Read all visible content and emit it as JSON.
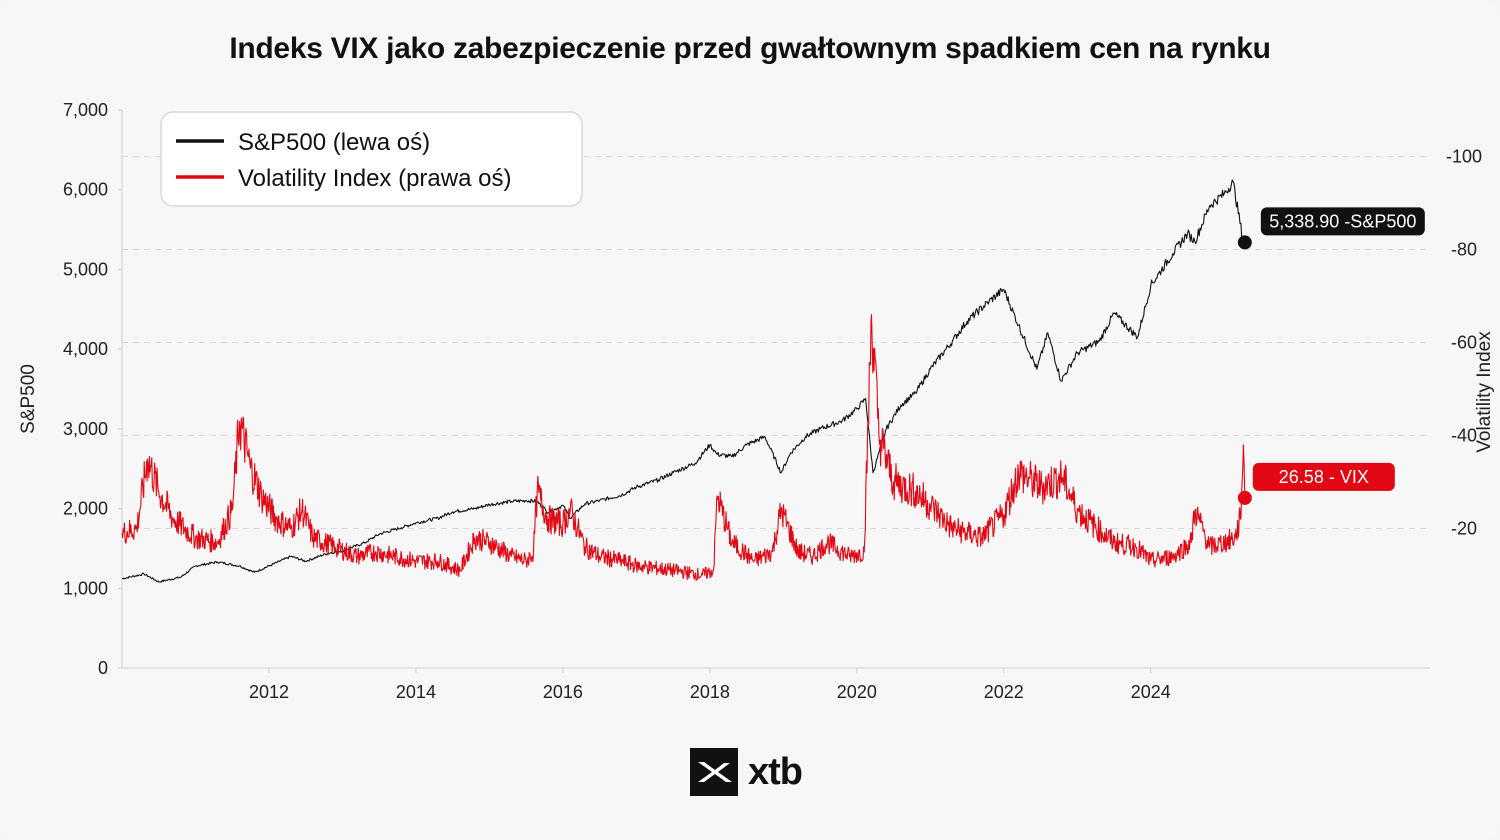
{
  "chart_data": {
    "type": "line",
    "title": "Indeks VIX jako zabezpieczenie przed gwałtownym spadkiem cen na rynku",
    "left_axis": {
      "label": "S&P500",
      "ylim": [
        0,
        7000
      ],
      "ticks": [
        0,
        1000,
        2000,
        3000,
        4000,
        5000,
        6000,
        7000
      ],
      "tick_labels": [
        "0",
        "1,000",
        "2,000",
        "3,000",
        "4,000",
        "5,000",
        "6,000",
        "7,000"
      ]
    },
    "right_axis": {
      "label": "Volatility Index",
      "ylim": [
        -10,
        110
      ],
      "ticks": [
        20,
        40,
        60,
        80,
        100
      ],
      "tick_labels": [
        "-20",
        "-40",
        "-60",
        "-80",
        "-100"
      ]
    },
    "x_axis": {
      "xlim": [
        2010.0,
        2027.8
      ],
      "ticks": [
        2012,
        2014,
        2016,
        2018,
        2020,
        2022,
        2024
      ],
      "tick_labels": [
        "2012",
        "2014",
        "2016",
        "2018",
        "2020",
        "2022",
        "2024"
      ]
    },
    "grid": {
      "horizontal_dashed": true,
      "legend_position": "top-left"
    },
    "series": [
      {
        "name": "S&P500 (lewa oś)",
        "axis": "left",
        "color": "#111111",
        "x": [
          2010.0,
          2010.3,
          2010.5,
          2010.8,
          2011.0,
          2011.3,
          2011.6,
          2011.8,
          2012.0,
          2012.3,
          2012.5,
          2012.8,
          2013.0,
          2013.3,
          2013.5,
          2013.8,
          2014.0,
          2014.3,
          2014.5,
          2014.8,
          2015.0,
          2015.3,
          2015.5,
          2015.65,
          2015.8,
          2016.0,
          2016.1,
          2016.3,
          2016.5,
          2016.8,
          2017.0,
          2017.3,
          2017.5,
          2017.8,
          2018.0,
          2018.1,
          2018.3,
          2018.5,
          2018.75,
          2018.97,
          2019.1,
          2019.3,
          2019.5,
          2019.8,
          2020.0,
          2020.12,
          2020.22,
          2020.4,
          2020.6,
          2020.8,
          2021.0,
          2021.3,
          2021.5,
          2021.8,
          2022.0,
          2022.2,
          2022.45,
          2022.6,
          2022.78,
          2023.0,
          2023.3,
          2023.5,
          2023.82,
          2024.0,
          2024.3,
          2024.5,
          2024.6,
          2024.8,
          2025.0,
          2025.12,
          2025.25,
          2025.28
        ],
        "values": [
          1120,
          1180,
          1080,
          1140,
          1280,
          1330,
          1280,
          1200,
          1280,
          1400,
          1340,
          1440,
          1470,
          1570,
          1680,
          1760,
          1820,
          1880,
          1960,
          2000,
          2050,
          2090,
          2100,
          2090,
          1950,
          2040,
          1880,
          2060,
          2100,
          2170,
          2270,
          2360,
          2450,
          2570,
          2800,
          2680,
          2650,
          2800,
          2900,
          2450,
          2700,
          2900,
          3000,
          3100,
          3250,
          3380,
          2450,
          3000,
          3300,
          3450,
          3750,
          4100,
          4350,
          4600,
          4750,
          4300,
          3750,
          4200,
          3600,
          3950,
          4100,
          4450,
          4150,
          4800,
          5200,
          5450,
          5350,
          5800,
          5950,
          6100,
          5400,
          5338.9
        ]
      },
      {
        "name": "Volatility Index (prawa oś)",
        "axis": "right",
        "color": "#e30613",
        "x": [
          2010.0,
          2010.2,
          2010.35,
          2010.5,
          2010.7,
          2011.0,
          2011.3,
          2011.5,
          2011.6,
          2011.75,
          2011.9,
          2012.1,
          2012.3,
          2012.45,
          2012.6,
          2012.9,
          2013.2,
          2013.45,
          2013.7,
          2014.0,
          2014.3,
          2014.6,
          2014.8,
          2015.0,
          2015.3,
          2015.5,
          2015.6,
          2015.65,
          2015.8,
          2016.0,
          2016.1,
          2016.3,
          2016.5,
          2016.8,
          2017.0,
          2017.5,
          2017.9,
          2018.05,
          2018.1,
          2018.3,
          2018.6,
          2018.85,
          2018.97,
          2019.2,
          2019.4,
          2019.6,
          2019.9,
          2020.1,
          2020.2,
          2020.3,
          2020.5,
          2020.8,
          2021.0,
          2021.3,
          2021.7,
          2022.0,
          2022.2,
          2022.5,
          2022.8,
          2023.0,
          2023.2,
          2023.5,
          2023.8,
          2024.0,
          2024.3,
          2024.55,
          2024.6,
          2024.8,
          2025.0,
          2025.15,
          2025.22,
          2025.26,
          2025.28
        ],
        "values": [
          19,
          20,
          35,
          28,
          22,
          18,
          17,
          24,
          43,
          33,
          27,
          22,
          20,
          24,
          18,
          16,
          14,
          15,
          14,
          13,
          13,
          11,
          18,
          17,
          14,
          13,
          15,
          28,
          22,
          21,
          24,
          16,
          14,
          13,
          12,
          11,
          10,
          11,
          27,
          17,
          13,
          15,
          24,
          15,
          14,
          17,
          14,
          15,
          66,
          40,
          30,
          28,
          25,
          20,
          18,
          23,
          32,
          29,
          31,
          24,
          21,
          17,
          16,
          13,
          14,
          17,
          24,
          16,
          17,
          18,
          22,
          38,
          26.58
        ]
      }
    ],
    "callouts": [
      {
        "text": "5,338.90 -S&P500",
        "color": "#111111"
      },
      {
        "text": "26.58 - VIX",
        "color": "#e30613"
      }
    ],
    "logo_text": "xtb"
  }
}
